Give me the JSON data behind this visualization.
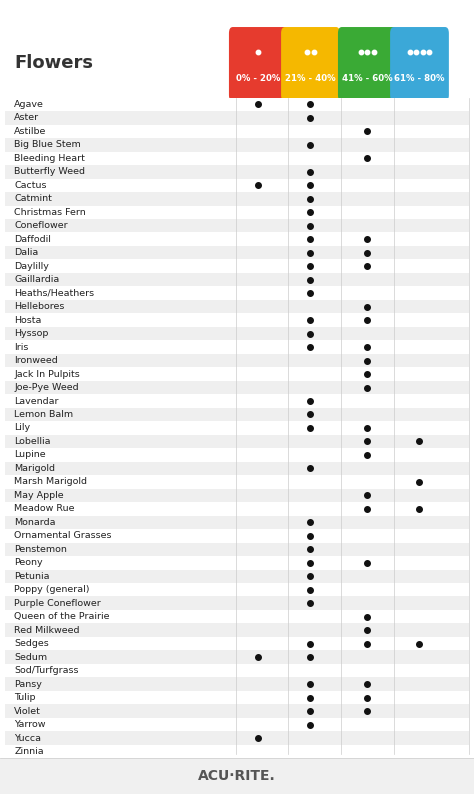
{
  "title": "Flowers",
  "columns": [
    "0% - 20%",
    "21% - 40%",
    "41% - 60%",
    "61% - 80%"
  ],
  "col_colors": [
    "#e63b2e",
    "#f5b800",
    "#3aaa35",
    "#3ba8d8"
  ],
  "plants": [
    "Agave",
    "Aster",
    "Astilbe",
    "Big Blue Stem",
    "Bleeding Heart",
    "Butterfly Weed",
    "Cactus",
    "Catmint",
    "Christmas Fern",
    "Coneflower",
    "Daffodil",
    "Dalia",
    "Daylilly",
    "Gaillardia",
    "Heaths/Heathers",
    "Hellebores",
    "Hosta",
    "Hyssop",
    "Iris",
    "Ironweed",
    "Jack In Pulpits",
    "Joe-Pye Weed",
    "Lavendar",
    "Lemon Balm",
    "Lily",
    "Lobellia",
    "Lupine",
    "Marigold",
    "Marsh Marigold",
    "May Apple",
    "Meadow Rue",
    "Monarda",
    "Ornamental Grasses",
    "Penstemon",
    "Peony",
    "Petunia",
    "Poppy (general)",
    "Purple Coneflower",
    "Queen of the Prairie",
    "Red Milkweed",
    "Sedges",
    "Sedum",
    "Sod/Turfgrass",
    "Pansy",
    "Tulip",
    "Violet",
    "Yarrow",
    "Yucca",
    "Zinnia"
  ],
  "dots": {
    "Agave": [
      1,
      1,
      0,
      0
    ],
    "Aster": [
      0,
      1,
      0,
      0
    ],
    "Astilbe": [
      0,
      0,
      1,
      0
    ],
    "Big Blue Stem": [
      0,
      1,
      0,
      0
    ],
    "Bleeding Heart": [
      0,
      0,
      1,
      0
    ],
    "Butterfly Weed": [
      0,
      1,
      0,
      0
    ],
    "Cactus": [
      1,
      1,
      0,
      0
    ],
    "Catmint": [
      0,
      1,
      0,
      0
    ],
    "Christmas Fern": [
      0,
      1,
      0,
      0
    ],
    "Coneflower": [
      0,
      1,
      0,
      0
    ],
    "Daffodil": [
      0,
      1,
      1,
      0
    ],
    "Dalia": [
      0,
      1,
      1,
      0
    ],
    "Daylilly": [
      0,
      1,
      1,
      0
    ],
    "Gaillardia": [
      0,
      1,
      0,
      0
    ],
    "Heaths/Heathers": [
      0,
      1,
      0,
      0
    ],
    "Hellebores": [
      0,
      0,
      1,
      0
    ],
    "Hosta": [
      0,
      1,
      1,
      0
    ],
    "Hyssop": [
      0,
      1,
      0,
      0
    ],
    "Iris": [
      0,
      1,
      1,
      0
    ],
    "Ironweed": [
      0,
      0,
      1,
      0
    ],
    "Jack In Pulpits": [
      0,
      0,
      1,
      0
    ],
    "Joe-Pye Weed": [
      0,
      0,
      1,
      0
    ],
    "Lavendar": [
      0,
      1,
      0,
      0
    ],
    "Lemon Balm": [
      0,
      1,
      0,
      0
    ],
    "Lily": [
      0,
      1,
      1,
      0
    ],
    "Lobellia": [
      0,
      0,
      1,
      1
    ],
    "Lupine": [
      0,
      0,
      1,
      0
    ],
    "Marigold": [
      0,
      1,
      0,
      0
    ],
    "Marsh Marigold": [
      0,
      0,
      0,
      1
    ],
    "May Apple": [
      0,
      0,
      1,
      0
    ],
    "Meadow Rue": [
      0,
      0,
      1,
      1
    ],
    "Monarda": [
      0,
      1,
      0,
      0
    ],
    "Ornamental Grasses": [
      0,
      1,
      0,
      0
    ],
    "Penstemon": [
      0,
      1,
      0,
      0
    ],
    "Peony": [
      0,
      1,
      1,
      0
    ],
    "Petunia": [
      0,
      1,
      0,
      0
    ],
    "Poppy (general)": [
      0,
      1,
      0,
      0
    ],
    "Purple Coneflower": [
      0,
      1,
      0,
      0
    ],
    "Queen of the Prairie": [
      0,
      0,
      1,
      0
    ],
    "Red Milkweed": [
      0,
      0,
      1,
      0
    ],
    "Sedges": [
      0,
      1,
      1,
      1
    ],
    "Sedum": [
      1,
      1,
      0,
      0
    ],
    "Sod/Turfgrass": [
      0,
      0,
      0,
      0
    ],
    "Pansy": [
      0,
      1,
      1,
      0
    ],
    "Tulip": [
      0,
      1,
      1,
      0
    ],
    "Violet": [
      0,
      1,
      1,
      0
    ],
    "Yarrow": [
      0,
      1,
      0,
      0
    ],
    "Yucca": [
      1,
      0,
      0,
      0
    ],
    "Zinnia": [
      0,
      0,
      0,
      0
    ]
  },
  "bg_color": "#ffffff",
  "row_alt_color": "#efefef",
  "row_main_color": "#ffffff",
  "logo_text": "ACU·RITE."
}
